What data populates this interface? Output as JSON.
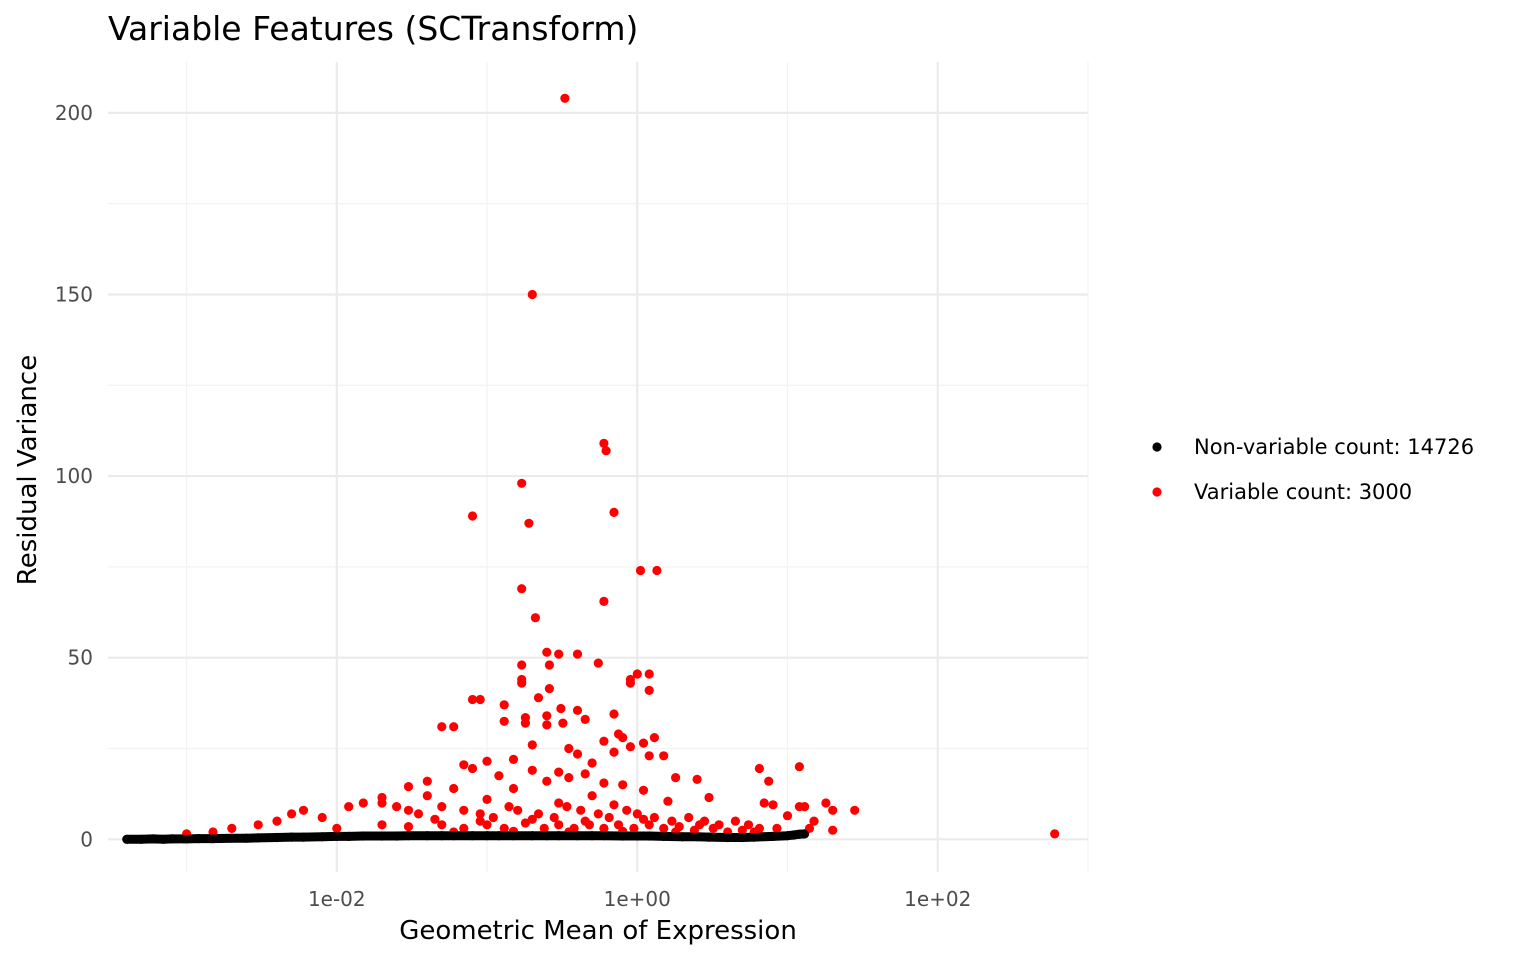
{
  "chart_data": {
    "type": "scatter",
    "title": "Variable Features (SCTransform)",
    "xlabel": "Geometric Mean of Expression",
    "ylabel": "Residual Variance",
    "x_scale": "log10",
    "x_ticks": [
      0.01,
      1,
      100
    ],
    "x_tick_labels": [
      "1e-02",
      "1e+00",
      "1e+02"
    ],
    "xlim": [
      0.0003,
      1000
    ],
    "y_ticks": [
      0,
      50,
      100,
      150,
      200
    ],
    "y_tick_labels": [
      "0",
      "50",
      "100",
      "150",
      "200"
    ],
    "ylim": [
      -9,
      214
    ],
    "grid": true,
    "legend_position": "right",
    "series": [
      {
        "name": "Non-variable count: 14726",
        "color": "#000000",
        "points": [
          [
            0.0004,
            0.0
          ],
          [
            0.0005,
            0.0
          ],
          [
            0.0006,
            0.1
          ],
          [
            0.0007,
            0.0
          ],
          [
            0.0008,
            0.1
          ],
          [
            0.001,
            0.1
          ],
          [
            0.0012,
            0.2
          ],
          [
            0.0015,
            0.2
          ],
          [
            0.002,
            0.3
          ],
          [
            0.0025,
            0.3
          ],
          [
            0.003,
            0.4
          ],
          [
            0.004,
            0.5
          ],
          [
            0.005,
            0.6
          ],
          [
            0.006,
            0.6
          ],
          [
            0.008,
            0.7
          ],
          [
            0.01,
            0.8
          ],
          [
            0.012,
            0.8
          ],
          [
            0.015,
            0.9
          ],
          [
            0.02,
            0.9
          ],
          [
            0.025,
            0.9
          ],
          [
            0.03,
            1.0
          ],
          [
            0.04,
            1.0
          ],
          [
            0.05,
            1.0
          ],
          [
            0.06,
            1.0
          ],
          [
            0.08,
            1.0
          ],
          [
            0.1,
            1.0
          ],
          [
            0.12,
            1.0
          ],
          [
            0.15,
            1.0
          ],
          [
            0.2,
            1.0
          ],
          [
            0.25,
            1.0
          ],
          [
            0.3,
            1.0
          ],
          [
            0.4,
            1.0
          ],
          [
            0.5,
            1.0
          ],
          [
            0.6,
            1.0
          ],
          [
            0.8,
            0.9
          ],
          [
            1.0,
            0.9
          ],
          [
            1.2,
            0.9
          ],
          [
            1.5,
            0.8
          ],
          [
            2.0,
            0.7
          ],
          [
            2.5,
            0.7
          ],
          [
            3.0,
            0.6
          ],
          [
            4.0,
            0.5
          ],
          [
            5.0,
            0.5
          ],
          [
            6.0,
            0.6
          ],
          [
            8.0,
            0.8
          ],
          [
            10.0,
            1.0
          ],
          [
            11.0,
            1.2
          ],
          [
            12.0,
            1.4
          ],
          [
            13.0,
            1.5
          ]
        ]
      },
      {
        "name": "Variable count: 3000",
        "color": "#ff0000",
        "points": [
          [
            0.33,
            204
          ],
          [
            0.2,
            150
          ],
          [
            0.6,
            109
          ],
          [
            0.62,
            107
          ],
          [
            0.17,
            98
          ],
          [
            0.7,
            90
          ],
          [
            0.08,
            89
          ],
          [
            0.19,
            87
          ],
          [
            1.05,
            74
          ],
          [
            1.35,
            74
          ],
          [
            0.17,
            69
          ],
          [
            0.6,
            65.5
          ],
          [
            0.21,
            61
          ],
          [
            0.25,
            51.5
          ],
          [
            0.3,
            51
          ],
          [
            0.4,
            51
          ],
          [
            0.55,
            48.5
          ],
          [
            0.17,
            48
          ],
          [
            0.26,
            48
          ],
          [
            1.0,
            45.5
          ],
          [
            1.2,
            45.5
          ],
          [
            0.9,
            44
          ],
          [
            0.17,
            44
          ],
          [
            0.9,
            43
          ],
          [
            0.17,
            43
          ],
          [
            0.26,
            41.5
          ],
          [
            1.2,
            41
          ],
          [
            0.22,
            39
          ],
          [
            0.08,
            38.5
          ],
          [
            0.09,
            38.5
          ],
          [
            0.13,
            37
          ],
          [
            0.31,
            36
          ],
          [
            0.4,
            35.5
          ],
          [
            0.7,
            34.5
          ],
          [
            0.25,
            34
          ],
          [
            0.18,
            33.5
          ],
          [
            0.45,
            33
          ],
          [
            0.13,
            32.5
          ],
          [
            0.18,
            32
          ],
          [
            0.32,
            32
          ],
          [
            0.25,
            31.5
          ],
          [
            0.06,
            31
          ],
          [
            0.05,
            31
          ],
          [
            0.75,
            29
          ],
          [
            0.8,
            28
          ],
          [
            0.6,
            27
          ],
          [
            1.3,
            28
          ],
          [
            1.1,
            26.5
          ],
          [
            0.2,
            26
          ],
          [
            0.9,
            25.5
          ],
          [
            0.35,
            25
          ],
          [
            0.7,
            24
          ],
          [
            0.4,
            23.5
          ],
          [
            1.5,
            23
          ],
          [
            1.2,
            23
          ],
          [
            0.15,
            22
          ],
          [
            0.1,
            21.5
          ],
          [
            0.5,
            21
          ],
          [
            0.07,
            20.5
          ],
          [
            0.08,
            19.5
          ],
          [
            0.2,
            19
          ],
          [
            0.3,
            18.5
          ],
          [
            0.45,
            18
          ],
          [
            0.12,
            17.5
          ],
          [
            0.35,
            17
          ],
          [
            1.8,
            17
          ],
          [
            2.5,
            16.5
          ],
          [
            0.04,
            16
          ],
          [
            0.25,
            16
          ],
          [
            0.6,
            15.5
          ],
          [
            0.8,
            15
          ],
          [
            0.03,
            14.5
          ],
          [
            0.15,
            14
          ],
          [
            0.06,
            14
          ],
          [
            1.1,
            13.5
          ],
          [
            0.02,
            11.5
          ],
          [
            0.04,
            12
          ],
          [
            0.5,
            12
          ],
          [
            3.0,
            11.5
          ],
          [
            0.1,
            11
          ],
          [
            1.6,
            10.5
          ],
          [
            0.3,
            10
          ],
          [
            0.7,
            9.5
          ],
          [
            6.5,
            19.5
          ],
          [
            7.5,
            16
          ],
          [
            12.0,
            20
          ],
          [
            12.0,
            9.0
          ],
          [
            7.0,
            10
          ],
          [
            8.0,
            9.5
          ],
          [
            13.0,
            9.0
          ],
          [
            14.0,
            3.0
          ],
          [
            18.0,
            10
          ],
          [
            20.0,
            8.0
          ],
          [
            28.0,
            8.0
          ],
          [
            20.0,
            2.5
          ],
          [
            10.0,
            6.5
          ],
          [
            15.0,
            5.0
          ],
          [
            600,
            1.5
          ],
          [
            0.006,
            8
          ],
          [
            0.005,
            7
          ],
          [
            0.004,
            5
          ],
          [
            0.003,
            4
          ],
          [
            0.002,
            3
          ],
          [
            0.0015,
            2
          ],
          [
            0.001,
            1.5
          ],
          [
            0.008,
            6
          ],
          [
            0.012,
            9
          ],
          [
            0.015,
            10
          ],
          [
            0.02,
            10
          ],
          [
            0.025,
            9
          ],
          [
            0.03,
            8
          ],
          [
            0.035,
            7
          ],
          [
            0.05,
            9
          ],
          [
            0.07,
            8
          ],
          [
            0.09,
            7
          ],
          [
            0.11,
            6
          ],
          [
            0.14,
            9
          ],
          [
            0.16,
            8
          ],
          [
            0.22,
            7
          ],
          [
            0.28,
            6
          ],
          [
            0.34,
            9
          ],
          [
            0.42,
            8
          ],
          [
            0.55,
            7
          ],
          [
            0.65,
            6
          ],
          [
            0.85,
            8
          ],
          [
            1.0,
            7
          ],
          [
            1.3,
            6
          ],
          [
            1.7,
            5
          ],
          [
            2.2,
            6
          ],
          [
            2.8,
            5
          ],
          [
            3.5,
            4
          ],
          [
            4.5,
            5
          ],
          [
            5.5,
            4
          ],
          [
            6.5,
            3
          ],
          [
            8.5,
            3
          ],
          [
            0.01,
            3
          ],
          [
            0.02,
            4
          ],
          [
            0.03,
            3.5
          ],
          [
            0.05,
            4
          ],
          [
            0.07,
            3
          ],
          [
            0.1,
            4
          ],
          [
            0.13,
            3
          ],
          [
            0.18,
            4.5
          ],
          [
            0.24,
            3
          ],
          [
            0.3,
            4
          ],
          [
            0.38,
            3
          ],
          [
            0.48,
            4
          ],
          [
            0.6,
            3
          ],
          [
            0.75,
            4
          ],
          [
            0.95,
            3
          ],
          [
            1.2,
            4
          ],
          [
            1.5,
            3
          ],
          [
            1.9,
            3.5
          ],
          [
            2.4,
            2.5
          ],
          [
            3.2,
            3
          ],
          [
            4.0,
            2
          ],
          [
            5.0,
            2.5
          ],
          [
            6.0,
            2
          ],
          [
            0.06,
            2
          ],
          [
            0.15,
            2.2
          ],
          [
            0.35,
            2
          ],
          [
            0.8,
            2.2
          ],
          [
            1.8,
            2
          ],
          [
            0.045,
            5.5
          ],
          [
            0.09,
            5
          ],
          [
            0.2,
            5.5
          ],
          [
            0.45,
            5
          ],
          [
            1.1,
            5.5
          ],
          [
            2.6,
            4
          ]
        ]
      }
    ]
  }
}
